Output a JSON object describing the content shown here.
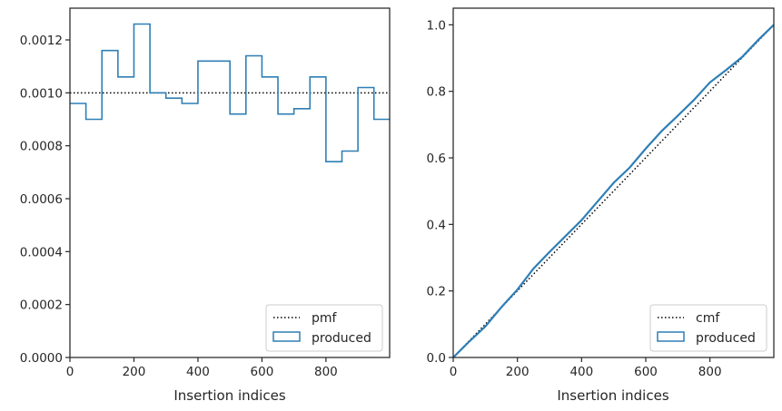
{
  "chart_data": [
    {
      "type": "line",
      "xlabel": "Insertion indices",
      "ylabel": "",
      "xlim": [
        0,
        999
      ],
      "ylim": [
        0,
        0.00132
      ],
      "xticks": [
        0,
        200,
        400,
        600,
        800
      ],
      "xtick_labels": [
        "0",
        "200",
        "400",
        "600",
        "800"
      ],
      "yticks": [
        0,
        0.0002,
        0.0004,
        0.0006,
        0.0008,
        0.001,
        0.0012
      ],
      "ytick_labels": [
        "0.0000",
        "0.0002",
        "0.0004",
        "0.0006",
        "0.0008",
        "0.0010",
        "0.0012"
      ],
      "legend_position": "lower-right",
      "series": [
        {
          "name": "pmf",
          "style": "dotted",
          "color": "#000000",
          "x": [
            0,
            999
          ],
          "y": [
            0.001,
            0.001
          ]
        },
        {
          "name": "produced",
          "style": "step",
          "color": "#2f7fb5",
          "bin_edges": [
            0,
            50,
            100,
            150,
            200,
            250,
            300,
            350,
            400,
            450,
            500,
            550,
            600,
            650,
            700,
            750,
            800,
            850,
            900,
            950,
            999
          ],
          "values": [
            0.00096,
            0.0009,
            0.00116,
            0.00106,
            0.00126,
            0.001,
            0.00098,
            0.00096,
            0.00112,
            0.00112,
            0.00092,
            0.00114,
            0.00106,
            0.00092,
            0.00094,
            0.00106,
            0.00074,
            0.00078,
            0.00102,
            0.0009
          ]
        }
      ]
    },
    {
      "type": "line",
      "xlabel": "Insertion indices",
      "ylabel": "",
      "xlim": [
        0,
        999
      ],
      "ylim": [
        0,
        1.05
      ],
      "xticks": [
        0,
        200,
        400,
        600,
        800
      ],
      "xtick_labels": [
        "0",
        "200",
        "400",
        "600",
        "800"
      ],
      "yticks": [
        0,
        0.2,
        0.4,
        0.6,
        0.8,
        1.0
      ],
      "ytick_labels": [
        "0.0",
        "0.2",
        "0.4",
        "0.6",
        "0.8",
        "1.0"
      ],
      "legend_position": "lower-right",
      "series": [
        {
          "name": "cmf",
          "style": "dotted",
          "color": "#000000",
          "x": [
            0,
            999
          ],
          "y": [
            0,
            1
          ]
        },
        {
          "name": "produced",
          "style": "line",
          "color": "#2f7fb5",
          "x": [
            0,
            50,
            100,
            150,
            200,
            250,
            300,
            350,
            400,
            450,
            500,
            550,
            600,
            650,
            700,
            750,
            800,
            850,
            900,
            950,
            999
          ],
          "y": [
            0,
            0.048,
            0.093,
            0.151,
            0.204,
            0.267,
            0.317,
            0.365,
            0.413,
            0.469,
            0.525,
            0.571,
            0.628,
            0.681,
            0.727,
            0.774,
            0.827,
            0.864,
            0.903,
            0.954,
            1.0
          ]
        }
      ]
    }
  ]
}
